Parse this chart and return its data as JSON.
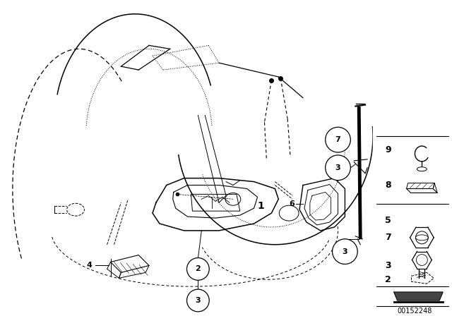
{
  "bg_color": "#ffffff",
  "line_color": "#000000",
  "fig_width": 6.4,
  "fig_height": 4.48,
  "dpi": 100,
  "diagram_id": "00152248"
}
